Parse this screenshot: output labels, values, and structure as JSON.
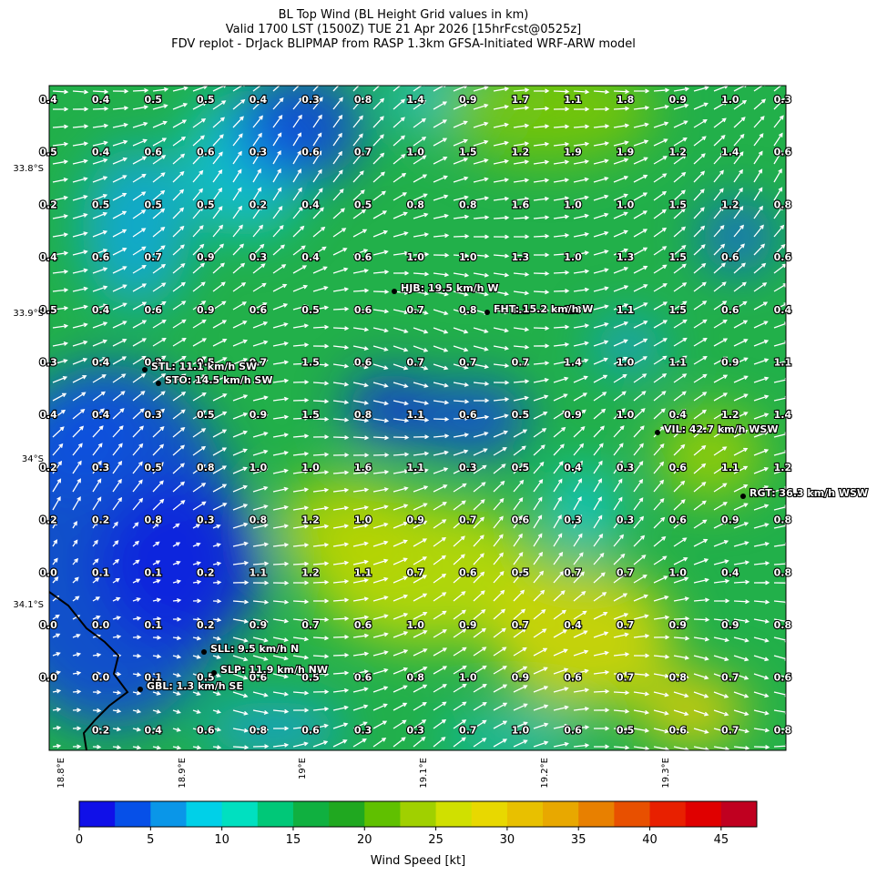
{
  "header": {
    "title_lines": [
      "BL Top Wind (BL Height Grid values in km)",
      "Valid 1700 LST (1500Z) TUE 21 Apr 2026 [15hrFcst@0525z]",
      "FDV replot - DrJack BLIPMAP from RASP 1.3km GFSA-Initiated WRF-ARW model"
    ]
  },
  "map": {
    "lat_labels": [
      "33.8°S",
      "33.9°S",
      "34°S",
      "34.1°S"
    ],
    "lon_labels": [
      "18.8°E",
      "18.9°E",
      "19°E",
      "19.1°E",
      "19.2°E",
      "19.3°E"
    ],
    "grid_values": [
      [
        "0.4",
        "0.4",
        "0.5",
        "0.5",
        "0.4",
        "0.3",
        "0.8",
        "1.4",
        "0.9",
        "1.7",
        "1.1",
        "1.8",
        "0.9",
        "1.0",
        "0.3"
      ],
      [
        "0.5",
        "0.4",
        "0.6",
        "0.6",
        "0.3",
        "0.6",
        "0.7",
        "1.0",
        "1.5",
        "1.2",
        "1.9",
        "1.9",
        "1.2",
        "1.4",
        "0.6"
      ],
      [
        "0.2",
        "0.5",
        "0.5",
        "0.5",
        "0.2",
        "0.4",
        "0.5",
        "0.8",
        "0.8",
        "1.6",
        "1.0",
        "1.0",
        "1.5",
        "1.2",
        "0.8"
      ],
      [
        "0.4",
        "0.6",
        "0.7",
        "0.9",
        "0.3",
        "0.4",
        "0.6",
        "1.0",
        "1.0",
        "1.3",
        "1.0",
        "1.3",
        "1.5",
        "0.6",
        "0.6"
      ],
      [
        "0.5",
        "0.4",
        "0.6",
        "0.9",
        "0.6",
        "0.5",
        "0.6",
        "0.7",
        "0.8",
        "1.1",
        "1.3",
        "1.1",
        "1.5",
        "0.6",
        "0.4"
      ],
      [
        "0.3",
        "0.4",
        "0.2",
        "0.5",
        "0.7",
        "1.5",
        "0.6",
        "0.7",
        "0.7",
        "0.7",
        "1.4",
        "1.0",
        "1.1",
        "0.9",
        "1.1"
      ],
      [
        "0.4",
        "0.4",
        "0.3",
        "0.5",
        "0.9",
        "1.5",
        "0.8",
        "1.1",
        "0.6",
        "0.5",
        "0.9",
        "1.0",
        "0.4",
        "1.2",
        "1.4"
      ],
      [
        "0.2",
        "0.3",
        "0.5",
        "0.8",
        "1.0",
        "1.0",
        "1.6",
        "1.1",
        "0.3",
        "0.5",
        "0.4",
        "0.3",
        "0.6",
        "1.1",
        "1.2"
      ],
      [
        "0.2",
        "0.2",
        "0.8",
        "0.3",
        "0.8",
        "1.2",
        "1.0",
        "0.9",
        "0.7",
        "0.6",
        "0.3",
        "0.3",
        "0.6",
        "0.9",
        "0.8"
      ],
      [
        "0.0",
        "0.1",
        "0.1",
        "0.2",
        "1.1",
        "1.2",
        "1.1",
        "0.7",
        "0.6",
        "0.5",
        "0.7",
        "0.7",
        "1.0",
        "0.4",
        "0.8"
      ],
      [
        "0.0",
        "0.0",
        "0.1",
        "0.2",
        "0.9",
        "0.7",
        "0.6",
        "1.0",
        "0.9",
        "0.7",
        "0.4",
        "0.7",
        "0.9",
        "0.9",
        "0.8"
      ],
      [
        "0.0",
        "0.0",
        "0.1",
        "0.5",
        "0.6",
        "0.5",
        "0.6",
        "0.8",
        "1.0",
        "0.9",
        "0.6",
        "0.7",
        "0.8",
        "0.7",
        "0.6"
      ],
      [
        null,
        "0.2",
        "0.4",
        "0.6",
        "0.8",
        "0.6",
        "0.3",
        "0.3",
        "0.7",
        "1.0",
        "0.6",
        "0.5",
        "0.6",
        "0.7",
        "0.8"
      ]
    ],
    "stations": [
      {
        "label": "HJB: 19.5 km/h W"
      },
      {
        "label": "FHT: 15.2 km/h W"
      },
      {
        "label": "STL: 11.1 km/h SW"
      },
      {
        "label": "STO: 14.5 km/h SW"
      },
      {
        "label": "VIL: 42.7 km/h WSW"
      },
      {
        "label": "RGT: 36.3 km/h WSW"
      },
      {
        "label": "SLL: 9.5 km/h N"
      },
      {
        "label": "SLP: 11.9 km/h NW"
      },
      {
        "label": "GBL: 1.3 km/h SE"
      }
    ]
  },
  "colorbar": {
    "label": "Wind Speed [kt]",
    "lim": [
      0,
      47.5
    ],
    "ticks": [
      0,
      5,
      10,
      15,
      20,
      25,
      30,
      35,
      40,
      45
    ],
    "colors": [
      "#1010e8",
      "#0650e8",
      "#0a96e8",
      "#00d0e8",
      "#00e0c0",
      "#00c878",
      "#10b040",
      "#20a820",
      "#60c000",
      "#a0d000",
      "#d0e000",
      "#e8d800",
      "#e8c000",
      "#e8a800",
      "#e88000",
      "#e85000",
      "#e82000",
      "#e00000",
      "#c00020"
    ]
  }
}
